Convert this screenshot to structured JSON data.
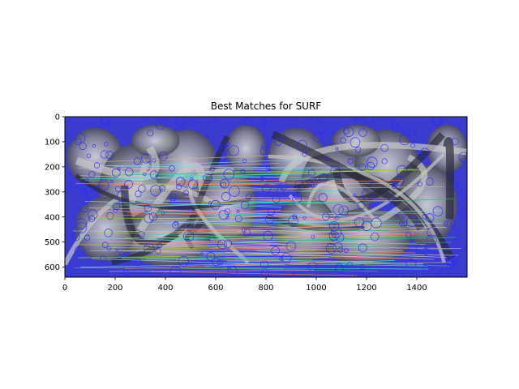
{
  "chart_data": {
    "type": "image",
    "title": "Best Matches for SURF",
    "xlabel": "",
    "ylabel": "",
    "xlim": [
      0,
      1600
    ],
    "ylim": [
      640,
      0
    ],
    "x_ticks": [
      0,
      200,
      400,
      600,
      800,
      1000,
      1200,
      1400
    ],
    "y_ticks": [
      0,
      100,
      200,
      300,
      400,
      500,
      600
    ],
    "grid": false,
    "image_description": "Two side-by-side photographs of an ornate metal sculpture concatenated horizontally (each 800 px wide), overlaid with blue circular SURF keypoint markers and many colored lines connecting matched keypoints between the left and right images.",
    "colors": {
      "keypoints": "#2a2aff",
      "match_lines": [
        "#9acd32",
        "#3cb371",
        "#dda0dd",
        "#87ceeb",
        "#d2b48c",
        "#ff7f50",
        "#40e0d0",
        "#c0c0c0"
      ],
      "image_dark": "#2a2a3a",
      "image_light": "#c8c8c8",
      "image_blue": "#3b3bd0"
    }
  }
}
